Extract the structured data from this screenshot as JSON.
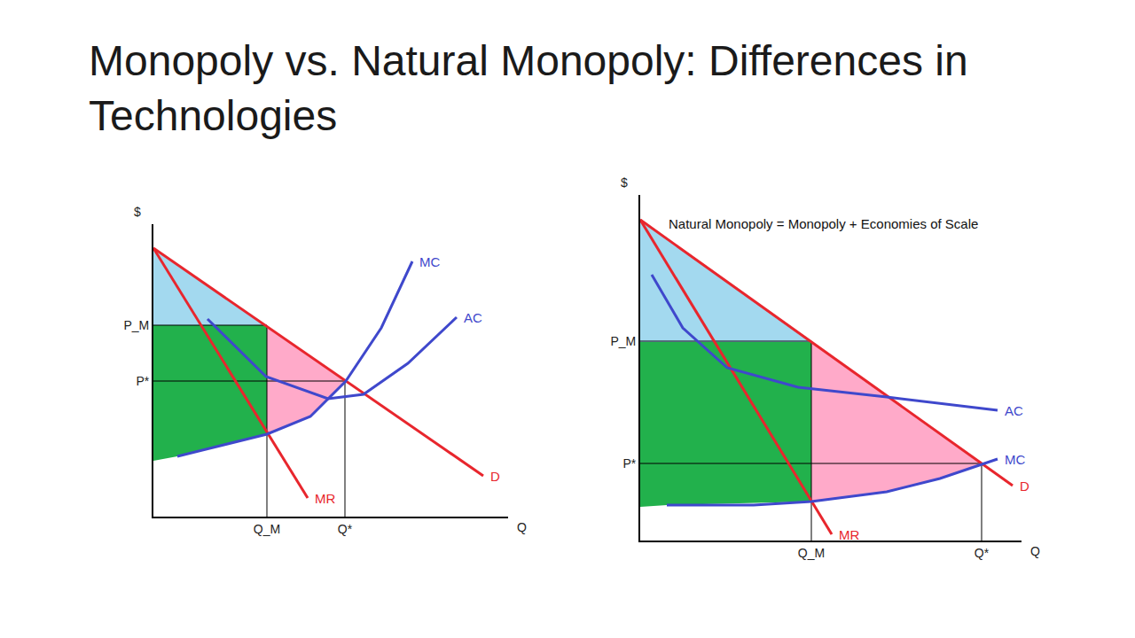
{
  "title": "Monopoly vs. Natural Monopoly:  Differences in Technologies",
  "chart_data": [
    {
      "type": "line",
      "x_label": "Q",
      "y_label": "$",
      "grid": false,
      "tick_labels": true,
      "xlim": [
        0,
        40
      ],
      "ylim": [
        0,
        33
      ],
      "xticks": [
        {
          "value": 12.8,
          "label": "Q_M"
        },
        {
          "value": 21.6,
          "label": "Q*"
        }
      ],
      "yticks": [
        {
          "value": 21.6,
          "label": "P_M"
        },
        {
          "value": 15.3,
          "label": "P*"
        }
      ],
      "series": [
        {
          "type": "area",
          "color": "#a3d9ef",
          "x": [
            0,
            0,
            12.8
          ],
          "values": [
            30.3,
            21.6,
            21.6
          ]
        },
        {
          "type": "area",
          "color": "#22b14c",
          "x": [
            0,
            12.8,
            12.8,
            2.7,
            0
          ],
          "values": [
            21.6,
            21.6,
            9.3,
            6.8,
            6.3
          ]
        },
        {
          "type": "area",
          "color": "#ffaac9",
          "x": [
            12.8,
            21.6,
            17.7,
            12.8
          ],
          "values": [
            21.5,
            15.4,
            11.3,
            9.3
          ]
        },
        {
          "type": "line",
          "line_style": "thin",
          "color": "#000000",
          "x": [
            0,
            12.8
          ],
          "values": [
            21.6,
            21.6
          ]
        },
        {
          "type": "line",
          "line_style": "thin",
          "color": "#000000",
          "x": [
            0,
            21.6
          ],
          "values": [
            15.3,
            15.3
          ]
        },
        {
          "type": "line",
          "line_style": "thin",
          "color": "#000000",
          "x": [
            12.8,
            12.8
          ],
          "values": [
            0,
            21.6
          ]
        },
        {
          "type": "line",
          "line_style": "thin",
          "color": "#000000",
          "x": [
            21.6,
            21.6
          ],
          "values": [
            0,
            15.4
          ]
        },
        {
          "name": "D",
          "type": "line",
          "line_style": "solid",
          "color": "#e8262d",
          "x": [
            0,
            37.2
          ],
          "values": [
            30.3,
            4.6
          ]
        },
        {
          "name": "MR",
          "type": "line",
          "line_style": "solid",
          "color": "#e8262d",
          "x": [
            0,
            17.4
          ],
          "values": [
            30.3,
            2.1
          ]
        },
        {
          "name": "MC",
          "type": "line",
          "line_style": "solid",
          "color": "#3f48cc",
          "x": [
            2.7,
            12.8,
            17.7,
            21.7,
            25.7,
            29.2
          ],
          "values": [
            6.8,
            9.3,
            11.3,
            15.3,
            21.3,
            28.8
          ]
        },
        {
          "name": "AC",
          "type": "line",
          "line_style": "solid",
          "color": "#3f48cc",
          "x": [
            6.1,
            12.7,
            19.7,
            23.7,
            28.7,
            34.2
          ],
          "values": [
            22.3,
            15.8,
            13.3,
            13.8,
            17.3,
            22.5
          ]
        }
      ]
    },
    {
      "type": "line",
      "x_label": "Q",
      "y_label": "$",
      "grid": false,
      "tick_labels": true,
      "xlim": [
        0,
        43
      ],
      "ylim": [
        0,
        39
      ],
      "xticks": [
        {
          "value": 19.3,
          "label": "Q_M"
        },
        {
          "value": 38.5,
          "label": "Q*"
        }
      ],
      "yticks": [
        {
          "value": 22.5,
          "label": "P_M"
        },
        {
          "value": 8.7,
          "label": "P*"
        }
      ],
      "annotations": [
        {
          "text": "Natural Monopoly = Monopoly + Economies of Scale",
          "x": 3,
          "y": 35.8
        }
      ],
      "series": [
        {
          "type": "area",
          "color": "#a3d9ef",
          "x": [
            0,
            0,
            19.3
          ],
          "values": [
            36.2,
            22.4,
            22.4
          ]
        },
        {
          "type": "area",
          "color": "#22b14c",
          "x": [
            0,
            19.3,
            19.3,
            3,
            0
          ],
          "values": [
            22.4,
            22.4,
            4.4,
            4,
            3.8
          ]
        },
        {
          "type": "area",
          "color": "#ffaac9",
          "x": [
            19.3,
            38.5,
            33.8,
            27.8,
            19.3
          ],
          "values": [
            22.4,
            8.7,
            7,
            5.5,
            4.4
          ]
        },
        {
          "type": "line",
          "line_style": "thin",
          "color": "#000000",
          "x": [
            0,
            19.3
          ],
          "values": [
            22.5,
            22.5
          ]
        },
        {
          "type": "line",
          "line_style": "thin",
          "color": "#000000",
          "x": [
            0,
            38.5
          ],
          "values": [
            8.7,
            8.7
          ]
        },
        {
          "type": "line",
          "line_style": "thin",
          "color": "#000000",
          "x": [
            19.3,
            19.3
          ],
          "values": [
            0,
            22.4
          ]
        },
        {
          "type": "line",
          "line_style": "thin",
          "color": "#000000",
          "x": [
            38.5,
            38.5
          ],
          "values": [
            0,
            8.7
          ]
        },
        {
          "name": "D",
          "type": "line",
          "line_style": "solid",
          "color": "#e8262d",
          "x": [
            0,
            42
          ],
          "values": [
            36.2,
            6.2
          ]
        },
        {
          "name": "MR",
          "type": "line",
          "line_style": "solid",
          "color": "#e8262d",
          "x": [
            0,
            21.6
          ],
          "values": [
            36.2,
            0.7
          ]
        },
        {
          "name": "AC",
          "type": "line",
          "line_style": "solid",
          "color": "#3f48cc",
          "x": [
            1.3,
            4.8,
            9.8,
            17.8,
            27.8,
            40.3
          ],
          "values": [
            30,
            24,
            19.5,
            17.3,
            16.2,
            14.7
          ]
        },
        {
          "name": "MC",
          "type": "line",
          "line_style": "solid",
          "color": "#3f48cc",
          "x": [
            3,
            12.8,
            19.3,
            27.8,
            33.8,
            40.3
          ],
          "values": [
            4,
            4,
            4.4,
            5.5,
            7,
            9.2
          ]
        }
      ]
    }
  ]
}
